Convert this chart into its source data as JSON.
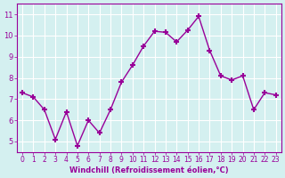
{
  "x": [
    0,
    1,
    2,
    3,
    4,
    5,
    6,
    7,
    8,
    9,
    10,
    11,
    12,
    13,
    14,
    15,
    16,
    17,
    18,
    19,
    20,
    21,
    22,
    23
  ],
  "y": [
    7.3,
    7.1,
    6.5,
    5.1,
    6.4,
    4.8,
    6.0,
    5.4,
    6.5,
    7.8,
    8.6,
    9.5,
    10.2,
    10.15,
    9.7,
    10.25,
    10.9,
    9.3,
    8.1,
    7.9,
    8.1,
    6.5,
    7.3,
    7.2
  ],
  "line_color": "#990099",
  "marker": "+",
  "bg_color": "#d4f0f0",
  "grid_color": "#ffffff",
  "xlabel": "Windchill (Refroidissement éolien,°C)",
  "xlabel_color": "#990099",
  "tick_color": "#990099",
  "ylim": [
    4.5,
    11.5
  ],
  "xlim": [
    -0.5,
    23.5
  ],
  "yticks": [
    5,
    6,
    7,
    8,
    9,
    10,
    11
  ],
  "xticks": [
    0,
    1,
    2,
    3,
    4,
    5,
    6,
    7,
    8,
    9,
    10,
    11,
    12,
    13,
    14,
    15,
    16,
    17,
    18,
    19,
    20,
    21,
    22,
    23
  ]
}
